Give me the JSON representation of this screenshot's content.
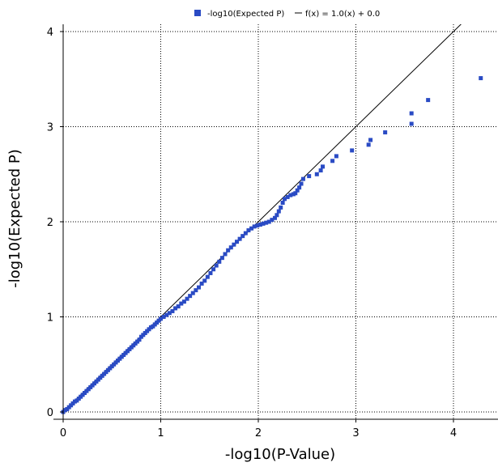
{
  "chart_data": {
    "type": "scatter",
    "xlabel": "-log10(P-Value)",
    "ylabel": "-log10(Expected P)",
    "xlim": [
      -0.05,
      4.5
    ],
    "ylim": [
      -0.05,
      4.1
    ],
    "x_ticks": [
      "0",
      "1",
      "2",
      "3",
      "4"
    ],
    "y_ticks": [
      "0",
      "1",
      "2",
      "3",
      "4"
    ],
    "grid": true,
    "grid_style": "dotted",
    "legend_position": "top",
    "legend": {
      "series_label": "-log10(Expected P)",
      "line_label": "f(x) = 1.0(x) + 0.0"
    },
    "colors": {
      "points": "#2a4bc4",
      "reference_line": "#000000",
      "grid": "#000000"
    },
    "reference_line": {
      "slope": 1.0,
      "intercept": 0.0
    },
    "series": [
      {
        "name": "-log10(Expected P)",
        "points": [
          [
            0.0,
            0.0
          ],
          [
            0.02,
            0.02
          ],
          [
            0.04,
            0.03
          ],
          [
            0.06,
            0.05
          ],
          [
            0.08,
            0.07
          ],
          [
            0.1,
            0.09
          ],
          [
            0.12,
            0.11
          ],
          [
            0.14,
            0.12
          ],
          [
            0.16,
            0.14
          ],
          [
            0.18,
            0.16
          ],
          [
            0.2,
            0.18
          ],
          [
            0.22,
            0.2
          ],
          [
            0.24,
            0.22
          ],
          [
            0.26,
            0.24
          ],
          [
            0.28,
            0.26
          ],
          [
            0.3,
            0.28
          ],
          [
            0.32,
            0.3
          ],
          [
            0.34,
            0.32
          ],
          [
            0.36,
            0.34
          ],
          [
            0.38,
            0.36
          ],
          [
            0.4,
            0.38
          ],
          [
            0.42,
            0.4
          ],
          [
            0.44,
            0.42
          ],
          [
            0.46,
            0.44
          ],
          [
            0.48,
            0.46
          ],
          [
            0.5,
            0.48
          ],
          [
            0.52,
            0.5
          ],
          [
            0.54,
            0.52
          ],
          [
            0.56,
            0.54
          ],
          [
            0.58,
            0.56
          ],
          [
            0.6,
            0.58
          ],
          [
            0.62,
            0.6
          ],
          [
            0.64,
            0.62
          ],
          [
            0.66,
            0.64
          ],
          [
            0.68,
            0.66
          ],
          [
            0.7,
            0.68
          ],
          [
            0.72,
            0.7
          ],
          [
            0.74,
            0.72
          ],
          [
            0.76,
            0.74
          ],
          [
            0.78,
            0.76
          ],
          [
            0.8,
            0.79
          ],
          [
            0.82,
            0.81
          ],
          [
            0.84,
            0.83
          ],
          [
            0.86,
            0.85
          ],
          [
            0.88,
            0.87
          ],
          [
            0.9,
            0.89
          ],
          [
            0.92,
            0.9
          ],
          [
            0.94,
            0.92
          ],
          [
            0.96,
            0.94
          ],
          [
            0.98,
            0.96
          ],
          [
            1.0,
            0.98
          ],
          [
            1.03,
            1.0
          ],
          [
            1.06,
            1.02
          ],
          [
            1.09,
            1.04
          ],
          [
            1.12,
            1.06
          ],
          [
            1.15,
            1.09
          ],
          [
            1.18,
            1.11
          ],
          [
            1.21,
            1.14
          ],
          [
            1.24,
            1.16
          ],
          [
            1.27,
            1.19
          ],
          [
            1.3,
            1.22
          ],
          [
            1.33,
            1.25
          ],
          [
            1.36,
            1.28
          ],
          [
            1.39,
            1.31
          ],
          [
            1.42,
            1.35
          ],
          [
            1.45,
            1.38
          ],
          [
            1.48,
            1.42
          ],
          [
            1.51,
            1.46
          ],
          [
            1.54,
            1.5
          ],
          [
            1.57,
            1.54
          ],
          [
            1.6,
            1.58
          ],
          [
            1.63,
            1.62
          ],
          [
            1.66,
            1.66
          ],
          [
            1.69,
            1.7
          ],
          [
            1.72,
            1.73
          ],
          [
            1.75,
            1.76
          ],
          [
            1.78,
            1.79
          ],
          [
            1.81,
            1.82
          ],
          [
            1.84,
            1.85
          ],
          [
            1.87,
            1.88
          ],
          [
            1.9,
            1.91
          ],
          [
            1.93,
            1.93
          ],
          [
            1.96,
            1.95
          ],
          [
            1.99,
            1.96
          ],
          [
            2.02,
            1.97
          ],
          [
            2.05,
            1.98
          ],
          [
            2.08,
            1.99
          ],
          [
            2.11,
            2.0
          ],
          [
            2.14,
            2.02
          ],
          [
            2.17,
            2.04
          ],
          [
            2.19,
            2.07
          ],
          [
            2.21,
            2.11
          ],
          [
            2.23,
            2.15
          ],
          [
            2.25,
            2.2
          ],
          [
            2.27,
            2.24
          ],
          [
            2.3,
            2.26
          ],
          [
            2.33,
            2.28
          ],
          [
            2.36,
            2.29
          ],
          [
            2.38,
            2.3
          ],
          [
            2.4,
            2.33
          ],
          [
            2.42,
            2.36
          ],
          [
            2.44,
            2.4
          ],
          [
            2.46,
            2.45
          ],
          [
            2.52,
            2.48
          ],
          [
            2.6,
            2.5
          ],
          [
            2.64,
            2.54
          ],
          [
            2.66,
            2.58
          ],
          [
            2.76,
            2.64
          ],
          [
            2.8,
            2.69
          ],
          [
            2.96,
            2.75
          ],
          [
            3.13,
            2.81
          ],
          [
            3.15,
            2.86
          ],
          [
            3.3,
            2.94
          ],
          [
            3.57,
            3.03
          ],
          [
            3.57,
            3.14
          ],
          [
            3.74,
            3.28
          ],
          [
            4.28,
            3.51
          ]
        ]
      }
    ]
  }
}
